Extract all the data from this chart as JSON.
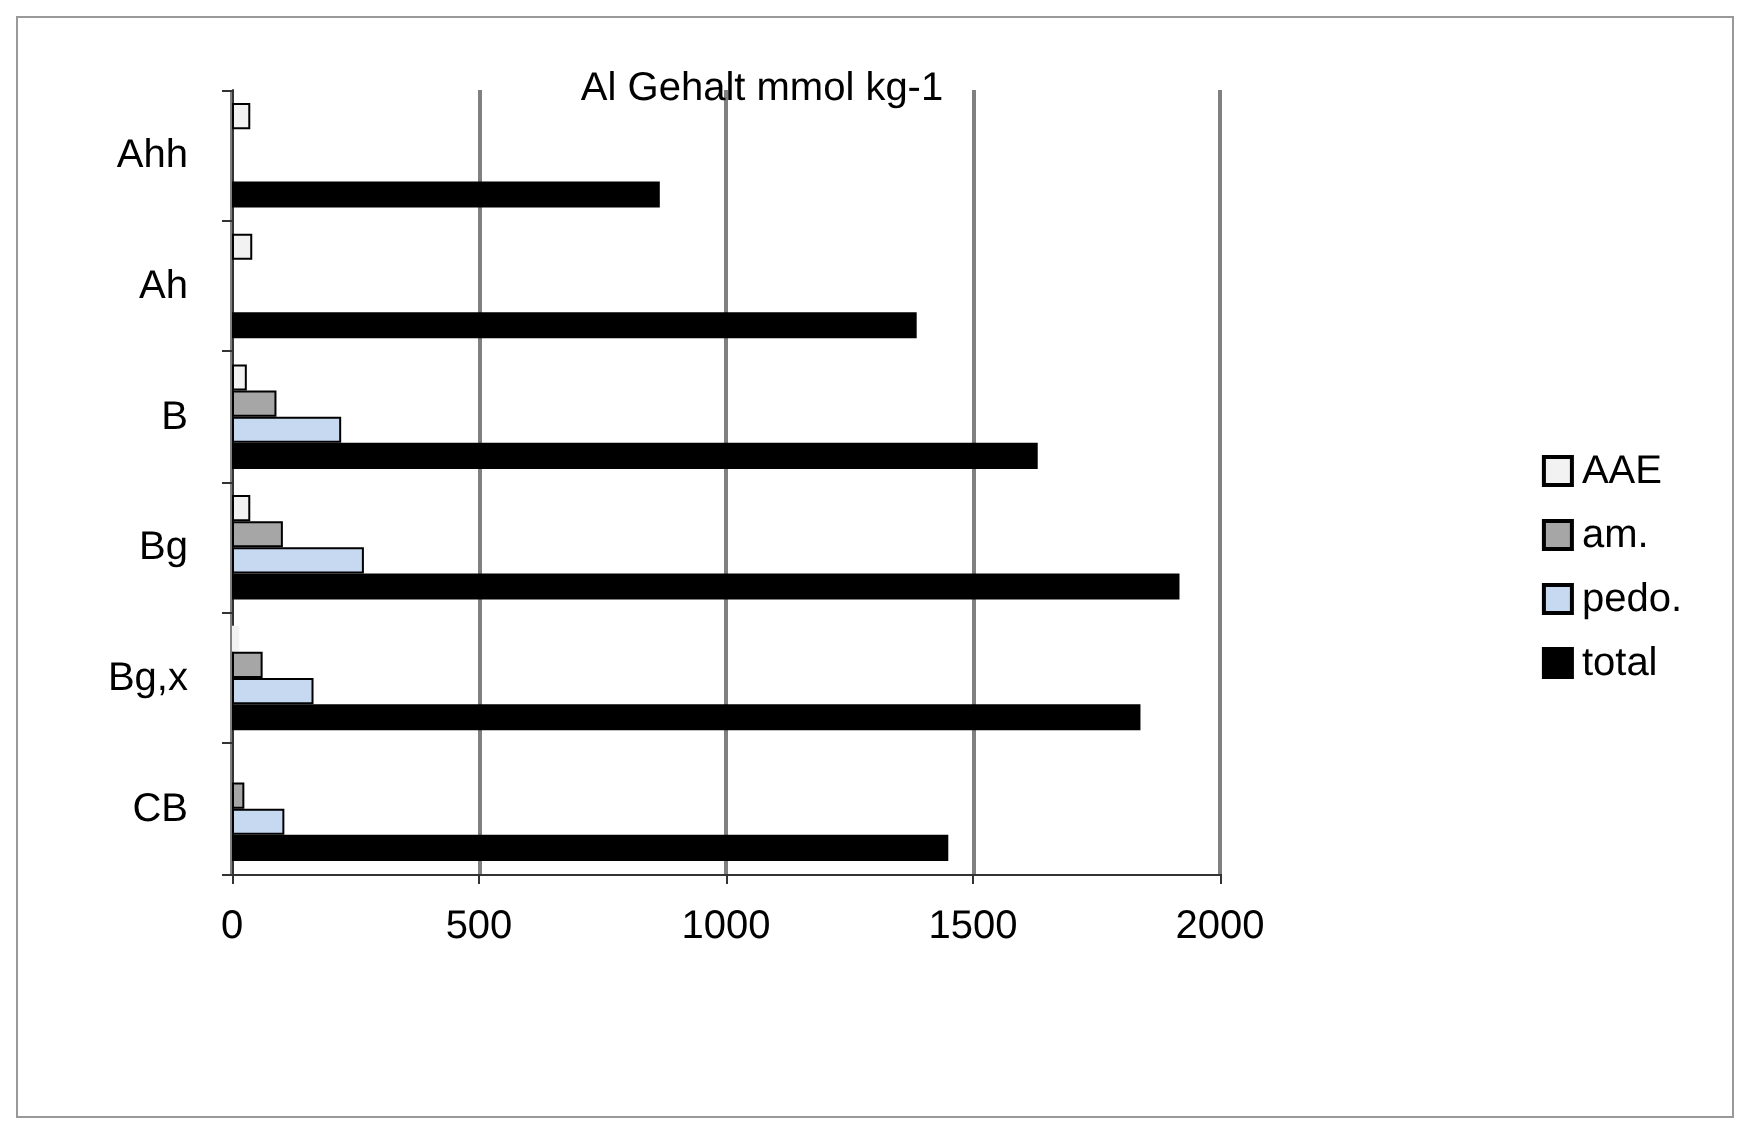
{
  "chart_data": {
    "type": "bar",
    "orientation": "horizontal",
    "title": "Al Gehalt mmol kg-1",
    "categories": [
      "Ahh",
      "Ah",
      "B",
      "Bg",
      "Bg,x",
      "CB"
    ],
    "series": [
      {
        "name": "AAE",
        "color": "#f2f2f2",
        "values": [
          37,
          41,
          30,
          37,
          15,
          null
        ]
      },
      {
        "name": "am.",
        "color": "#a6a6a6",
        "values": [
          null,
          null,
          90,
          103,
          62,
          25
        ]
      },
      {
        "name": "pedo.",
        "color": "#c6d9f1",
        "values": [
          null,
          null,
          221,
          267,
          165,
          106
        ]
      },
      {
        "name": "total",
        "color": "#000000",
        "values": [
          866,
          1386,
          1631,
          1918,
          1839,
          1450
        ]
      }
    ],
    "xlim": [
      0,
      2000
    ],
    "xticks": [
      0,
      500,
      1000,
      1500,
      2000
    ],
    "grid": "x",
    "legend": "right"
  }
}
